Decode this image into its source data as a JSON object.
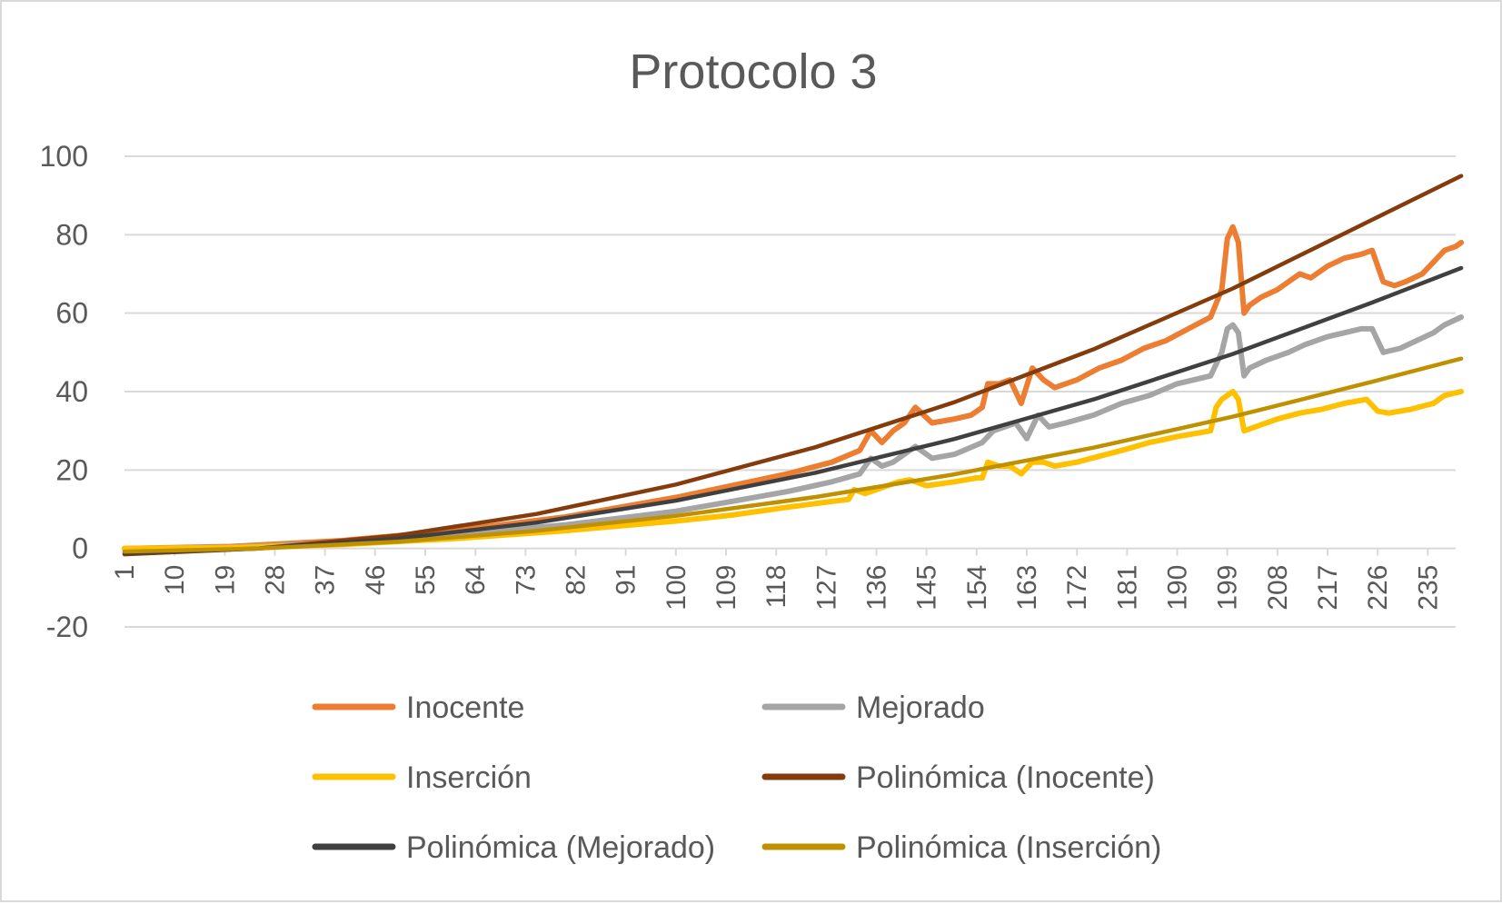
{
  "chart_data": {
    "type": "line",
    "title": "Protocolo 3",
    "xlabel": "",
    "ylabel": "",
    "ylim": [
      -20,
      100
    ],
    "yticks": [
      "100",
      "80",
      "60",
      "40",
      "20",
      "0",
      "-20"
    ],
    "xlim": [
      1,
      240
    ],
    "xticks": [
      "1",
      "10",
      "19",
      "28",
      "37",
      "46",
      "55",
      "64",
      "73",
      "82",
      "91",
      "100",
      "109",
      "118",
      "127",
      "136",
      "145",
      "154",
      "163",
      "172",
      "181",
      "190",
      "199",
      "208",
      "217",
      "226",
      "235"
    ],
    "grid": true,
    "legend_position": "bottom",
    "series": [
      {
        "name": "Inocente",
        "color": "#ED7D31",
        "points": [
          [
            1,
            0
          ],
          [
            20,
            0.5
          ],
          [
            40,
            2
          ],
          [
            60,
            4.5
          ],
          [
            80,
            8
          ],
          [
            100,
            13
          ],
          [
            110,
            16
          ],
          [
            120,
            19
          ],
          [
            128,
            22
          ],
          [
            133,
            25
          ],
          [
            135,
            30
          ],
          [
            137,
            27
          ],
          [
            139,
            30
          ],
          [
            141,
            32
          ],
          [
            143,
            36
          ],
          [
            146,
            32
          ],
          [
            150,
            33
          ],
          [
            153,
            34
          ],
          [
            155,
            36
          ],
          [
            156,
            42
          ],
          [
            158,
            42
          ],
          [
            160,
            43
          ],
          [
            162,
            37
          ],
          [
            164,
            46
          ],
          [
            166,
            43
          ],
          [
            168,
            41
          ],
          [
            172,
            43
          ],
          [
            176,
            46
          ],
          [
            180,
            48
          ],
          [
            184,
            51
          ],
          [
            188,
            53
          ],
          [
            192,
            56
          ],
          [
            196,
            59
          ],
          [
            198,
            66
          ],
          [
            199,
            79
          ],
          [
            200,
            82
          ],
          [
            201,
            78
          ],
          [
            202,
            60
          ],
          [
            203,
            62
          ],
          [
            205,
            64
          ],
          [
            208,
            66
          ],
          [
            210,
            68
          ],
          [
            212,
            70
          ],
          [
            214,
            69
          ],
          [
            217,
            72
          ],
          [
            220,
            74
          ],
          [
            223,
            75
          ],
          [
            225,
            76
          ],
          [
            227,
            68
          ],
          [
            229,
            67
          ],
          [
            231,
            68
          ],
          [
            234,
            70
          ],
          [
            236,
            73
          ],
          [
            238,
            76
          ],
          [
            240,
            77
          ],
          [
            241,
            78
          ]
        ]
      },
      {
        "name": "Mejorado",
        "color": "#A5A5A5",
        "points": [
          [
            1,
            0
          ],
          [
            20,
            0.3
          ],
          [
            40,
            1.5
          ],
          [
            60,
            3.5
          ],
          [
            80,
            6
          ],
          [
            100,
            9.5
          ],
          [
            110,
            12
          ],
          [
            120,
            14.5
          ],
          [
            128,
            17
          ],
          [
            133,
            19
          ],
          [
            135,
            23
          ],
          [
            137,
            21
          ],
          [
            139,
            22
          ],
          [
            141,
            24
          ],
          [
            143,
            26
          ],
          [
            146,
            23
          ],
          [
            150,
            24
          ],
          [
            155,
            27
          ],
          [
            157,
            30
          ],
          [
            159,
            31
          ],
          [
            161,
            32
          ],
          [
            163,
            28
          ],
          [
            165,
            34
          ],
          [
            167,
            31
          ],
          [
            170,
            32
          ],
          [
            175,
            34
          ],
          [
            180,
            37
          ],
          [
            185,
            39
          ],
          [
            190,
            42
          ],
          [
            196,
            44
          ],
          [
            198,
            50
          ],
          [
            199,
            56
          ],
          [
            200,
            57
          ],
          [
            201,
            55
          ],
          [
            202,
            44
          ],
          [
            203,
            46
          ],
          [
            206,
            48
          ],
          [
            210,
            50
          ],
          [
            213,
            52
          ],
          [
            217,
            54
          ],
          [
            220,
            55
          ],
          [
            223,
            56
          ],
          [
            225,
            56
          ],
          [
            227,
            50
          ],
          [
            230,
            51
          ],
          [
            233,
            53
          ],
          [
            236,
            55
          ],
          [
            238,
            57
          ],
          [
            241,
            59
          ]
        ]
      },
      {
        "name": "Inserción",
        "color": "#FFC000",
        "points": [
          [
            1,
            0
          ],
          [
            20,
            0.2
          ],
          [
            40,
            1
          ],
          [
            60,
            2.5
          ],
          [
            80,
            4.5
          ],
          [
            100,
            7
          ],
          [
            110,
            8.5
          ],
          [
            120,
            10.5
          ],
          [
            128,
            12
          ],
          [
            131,
            12.5
          ],
          [
            132,
            15
          ],
          [
            134,
            14
          ],
          [
            136,
            15
          ],
          [
            138,
            16
          ],
          [
            140,
            17
          ],
          [
            142,
            17.5
          ],
          [
            145,
            16
          ],
          [
            150,
            17
          ],
          [
            154,
            18
          ],
          [
            155,
            18
          ],
          [
            156,
            22
          ],
          [
            158,
            21
          ],
          [
            160,
            21
          ],
          [
            162,
            19
          ],
          [
            164,
            22
          ],
          [
            166,
            22
          ],
          [
            168,
            21
          ],
          [
            172,
            22
          ],
          [
            176,
            23.5
          ],
          [
            180,
            25
          ],
          [
            185,
            27
          ],
          [
            190,
            28.5
          ],
          [
            194,
            29.5
          ],
          [
            196,
            30
          ],
          [
            197,
            36
          ],
          [
            198,
            38
          ],
          [
            200,
            40
          ],
          [
            201,
            38
          ],
          [
            202,
            30
          ],
          [
            204,
            31
          ],
          [
            208,
            33
          ],
          [
            212,
            34.5
          ],
          [
            216,
            35.5
          ],
          [
            220,
            37
          ],
          [
            224,
            38
          ],
          [
            226,
            35
          ],
          [
            228,
            34.5
          ],
          [
            232,
            35.5
          ],
          [
            236,
            37
          ],
          [
            238,
            39
          ],
          [
            241,
            40
          ]
        ]
      },
      {
        "name": "Polinómica (Inocente)",
        "color": "#843C0C",
        "points": [
          [
            1,
            -1.5
          ],
          [
            25,
            0
          ],
          [
            50,
            3.3
          ],
          [
            75,
            8.8
          ],
          [
            100,
            16.3
          ],
          [
            125,
            25.8
          ],
          [
            150,
            37.3
          ],
          [
            175,
            50.8
          ],
          [
            200,
            66.3
          ],
          [
            225,
            83.8
          ],
          [
            241,
            95
          ]
        ]
      },
      {
        "name": "Polinómica (Mejorado)",
        "color": "#404040",
        "points": [
          [
            1,
            -1.2
          ],
          [
            25,
            0
          ],
          [
            50,
            2.5
          ],
          [
            75,
            6.6
          ],
          [
            100,
            12.2
          ],
          [
            125,
            19.3
          ],
          [
            150,
            27.9
          ],
          [
            175,
            38
          ],
          [
            200,
            49.6
          ],
          [
            225,
            62.7
          ],
          [
            241,
            71.5
          ]
        ]
      },
      {
        "name": "Polinómica (Inserción)",
        "color": "#BF9000",
        "points": [
          [
            1,
            -0.8
          ],
          [
            25,
            0
          ],
          [
            50,
            1.7
          ],
          [
            75,
            4.5
          ],
          [
            100,
            8.3
          ],
          [
            125,
            13.1
          ],
          [
            150,
            18.9
          ],
          [
            175,
            25.7
          ],
          [
            200,
            33.6
          ],
          [
            225,
            42.5
          ],
          [
            241,
            48.4
          ]
        ]
      }
    ]
  }
}
